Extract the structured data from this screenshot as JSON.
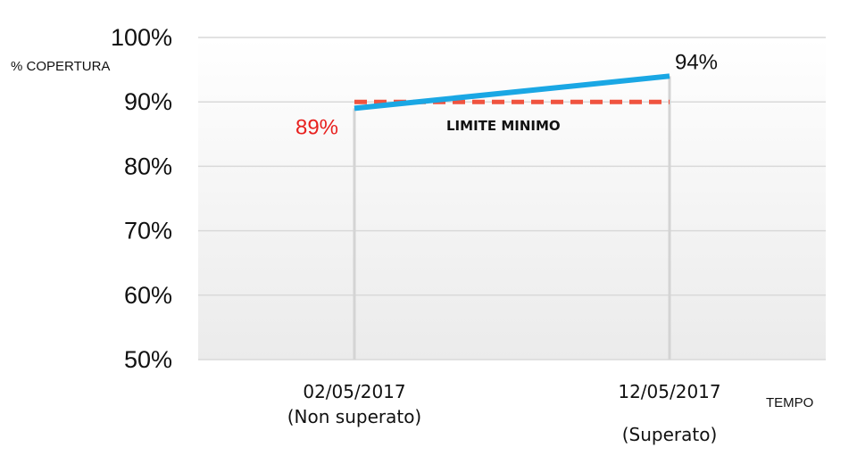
{
  "chart_data": {
    "type": "line",
    "categories": [
      "02/05/2017",
      "12/05/2017"
    ],
    "category_sublabels": [
      "(Non superato)",
      "(Superato)"
    ],
    "ylabel": "% COPERTURA",
    "xlabel": "TEMPO",
    "ylim": [
      50,
      100
    ],
    "yticks": [
      50,
      60,
      70,
      80,
      90,
      100
    ],
    "ytick_labels": [
      "50%",
      "60%",
      "70%",
      "80%",
      "90%",
      "100%"
    ],
    "grid": true,
    "series": [
      {
        "values": [
          89,
          94
        ],
        "data_labels": [
          "89%",
          "94%"
        ],
        "data_label_colors": [
          "#e8211f",
          "#111111"
        ],
        "color": "#1aa7e4",
        "style": "solid"
      },
      {
        "values": [
          90,
          90
        ],
        "color": "#f0533f",
        "style": "dashed"
      }
    ],
    "annotations": [
      {
        "text": "LIMITE MINIMO"
      }
    ]
  }
}
